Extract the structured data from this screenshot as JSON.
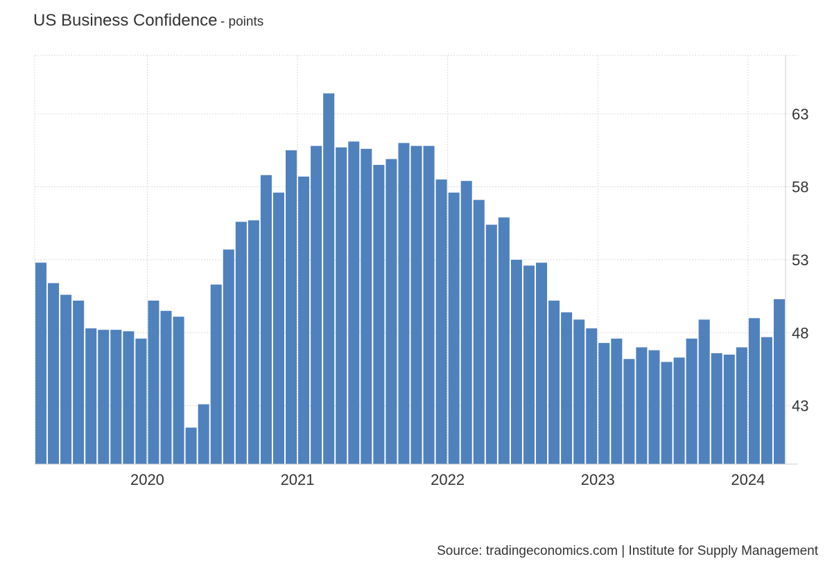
{
  "header": {
    "title": "US Business Confidence",
    "subtitle": "- points"
  },
  "footer": {
    "source": "Source: tradingeconomics.com | Institute for Supply Management"
  },
  "colors": {
    "bar": "#4f81bd",
    "grid": "#d9d9d9",
    "axis": "#cccccc"
  },
  "chart_data": {
    "type": "bar",
    "categories": [
      "2019-04",
      "2019-05",
      "2019-06",
      "2019-07",
      "2019-08",
      "2019-09",
      "2019-10",
      "2019-11",
      "2019-12",
      "2020-01",
      "2020-02",
      "2020-03",
      "2020-04",
      "2020-05",
      "2020-06",
      "2020-07",
      "2020-08",
      "2020-09",
      "2020-10",
      "2020-11",
      "2020-12",
      "2021-01",
      "2021-02",
      "2021-03",
      "2021-04",
      "2021-05",
      "2021-06",
      "2021-07",
      "2021-08",
      "2021-09",
      "2021-10",
      "2021-11",
      "2021-12",
      "2022-01",
      "2022-02",
      "2022-03",
      "2022-04",
      "2022-05",
      "2022-06",
      "2022-07",
      "2022-08",
      "2022-09",
      "2022-10",
      "2022-11",
      "2022-12",
      "2023-01",
      "2023-02",
      "2023-03",
      "2023-04",
      "2023-05",
      "2023-06",
      "2023-07",
      "2023-08",
      "2023-09",
      "2023-10",
      "2023-11",
      "2023-12",
      "2024-01",
      "2024-02",
      "2024-03"
    ],
    "values": [
      52.8,
      51.4,
      50.6,
      50.2,
      48.3,
      48.2,
      48.2,
      48.1,
      47.6,
      50.2,
      49.5,
      49.1,
      41.5,
      43.1,
      51.3,
      53.7,
      55.6,
      55.7,
      58.8,
      57.6,
      60.5,
      58.7,
      60.8,
      64.4,
      60.7,
      61.1,
      60.6,
      59.5,
      59.9,
      61.0,
      60.8,
      60.8,
      58.5,
      57.6,
      58.4,
      57.1,
      55.4,
      55.9,
      53.0,
      52.6,
      52.8,
      50.2,
      49.4,
      48.9,
      48.3,
      47.3,
      47.6,
      46.2,
      47.0,
      46.8,
      46.0,
      46.3,
      47.6,
      48.9,
      46.6,
      46.5,
      47.0,
      49.0,
      47.7,
      50.3
    ],
    "xticks": [
      "2020",
      "2021",
      "2022",
      "2023",
      "2024"
    ],
    "yticks": [
      43,
      48,
      53,
      58,
      63
    ],
    "ylim": [
      39,
      67
    ],
    "grid": true,
    "y_axis_position": "right"
  }
}
